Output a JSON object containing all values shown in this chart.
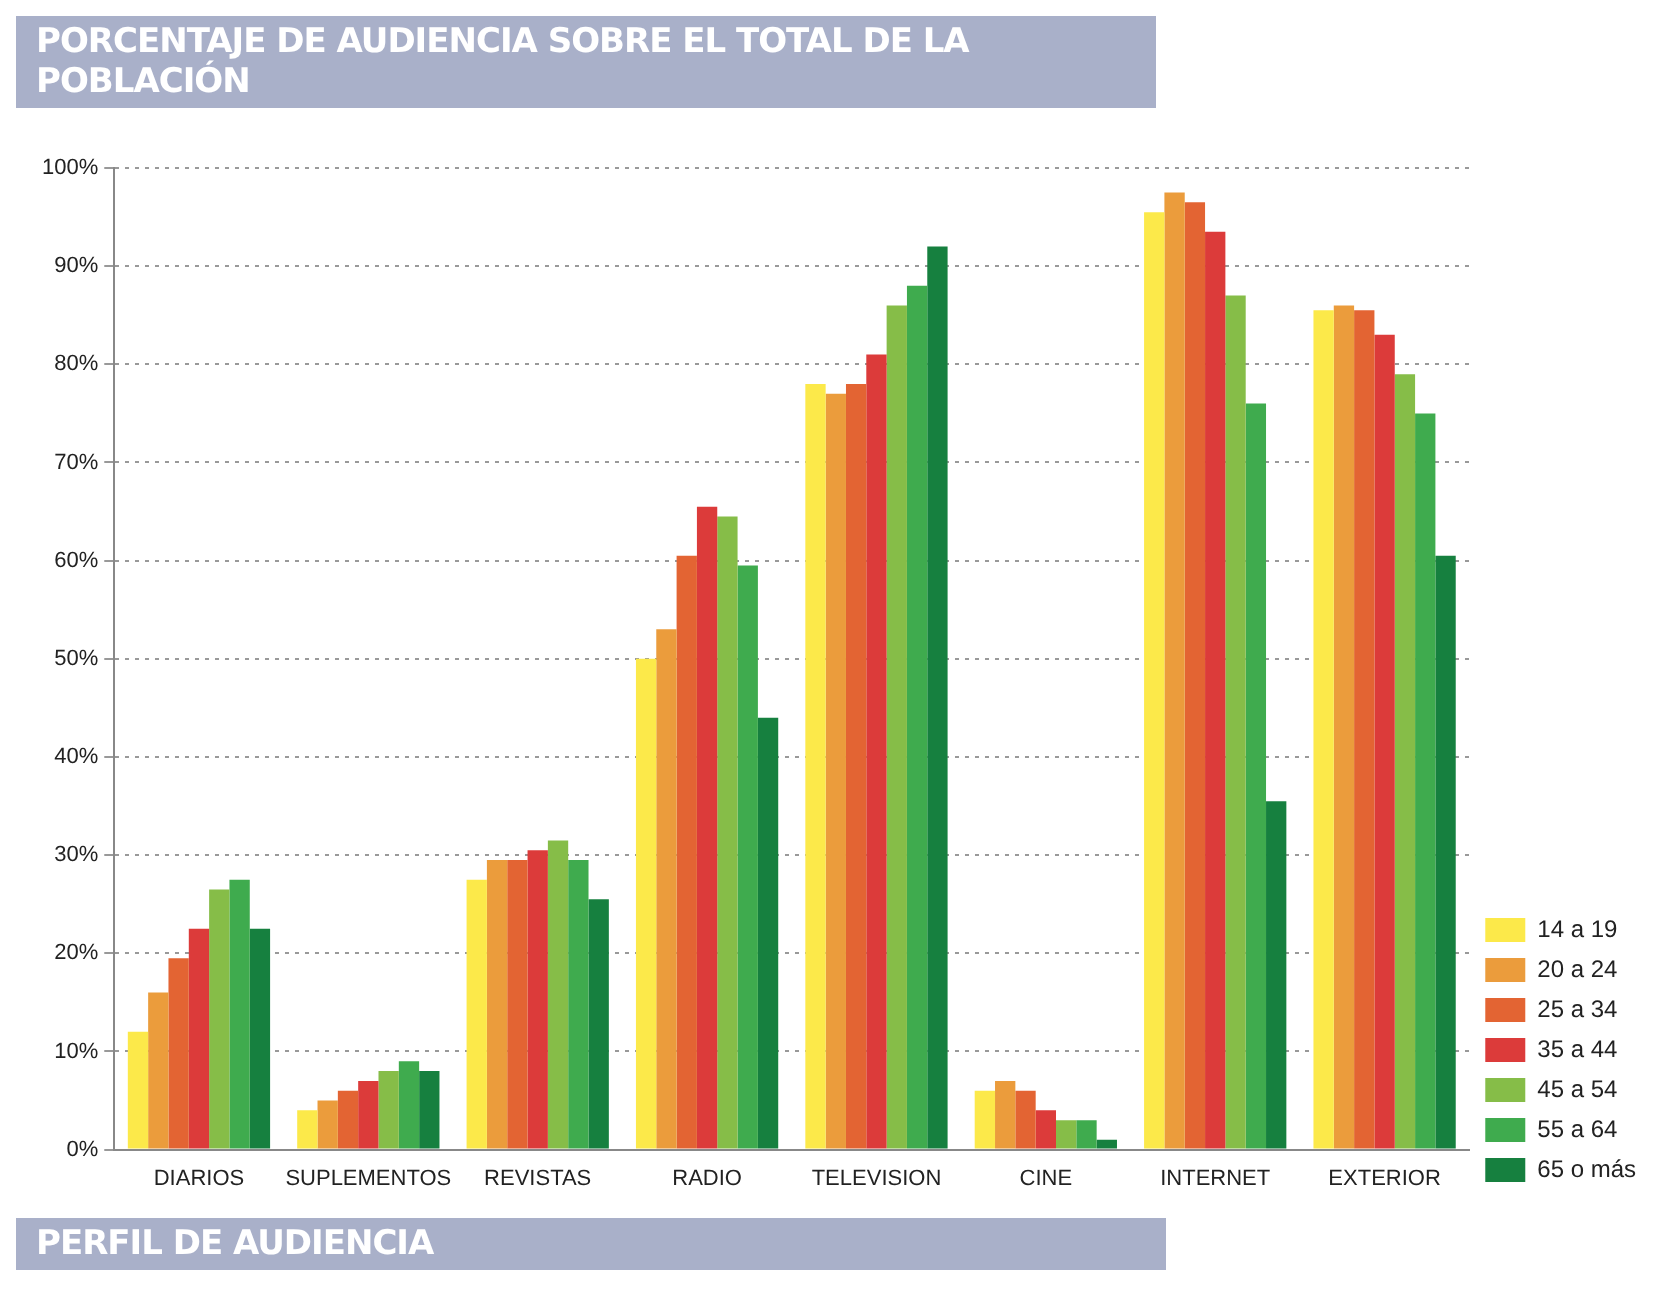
{
  "chart_data": {
    "type": "bar",
    "title": "PORCENTAJE DE AUDIENCIA SOBRE EL TOTAL DE LA POBLACIÓN",
    "categories": [
      "DIARIOS",
      "SUPLEMENTOS",
      "REVISTAS",
      "RADIO",
      "TELEVISION",
      "CINE",
      "INTERNET",
      "EXTERIOR"
    ],
    "series": [
      {
        "name": "14 a 19",
        "color": "#fce94a",
        "values": [
          12,
          4,
          27.5,
          50,
          78,
          6,
          95.5,
          85.5
        ]
      },
      {
        "name": "20 a 24",
        "color": "#eb9c3c",
        "values": [
          16,
          5,
          29.5,
          53,
          77,
          7,
          97.5,
          86
        ]
      },
      {
        "name": "25 a 34",
        "color": "#e36433",
        "values": [
          19.5,
          6,
          29.5,
          60.5,
          78,
          6,
          96.5,
          85.5
        ]
      },
      {
        "name": "35 a 44",
        "color": "#dc3b3a",
        "values": [
          22.5,
          7,
          30.5,
          65.5,
          81,
          4,
          93.5,
          83
        ]
      },
      {
        "name": "45 a 54",
        "color": "#86bd48",
        "values": [
          26.5,
          8,
          31.5,
          64.5,
          86,
          3,
          87,
          79
        ]
      },
      {
        "name": "55 a 64",
        "color": "#3fab4e",
        "values": [
          27.5,
          9,
          29.5,
          59.5,
          88,
          3,
          76,
          75
        ]
      },
      {
        "name": "65 o más",
        "color": "#16803f",
        "values": [
          22.5,
          8,
          25.5,
          44,
          92,
          1,
          35.5,
          60.5
        ]
      }
    ],
    "ylim": [
      0,
      100
    ],
    "yticks": [
      {
        "value": 0,
        "label": "0%"
      },
      {
        "value": 10,
        "label": "10%"
      },
      {
        "value": 20,
        "label": "20%"
      },
      {
        "value": 30,
        "label": "30%"
      },
      {
        "value": 40,
        "label": "40%"
      },
      {
        "value": 50,
        "label": "50%"
      },
      {
        "value": 60,
        "label": "60%"
      },
      {
        "value": 70,
        "label": "70%"
      },
      {
        "value": 80,
        "label": "80%"
      },
      {
        "value": 90,
        "label": "90%"
      },
      {
        "value": 100,
        "label": "100%"
      }
    ],
    "grid": "y",
    "legend": "bottom right",
    "annotations": [
      "PERFIL DE AUDIENCIA"
    ]
  }
}
